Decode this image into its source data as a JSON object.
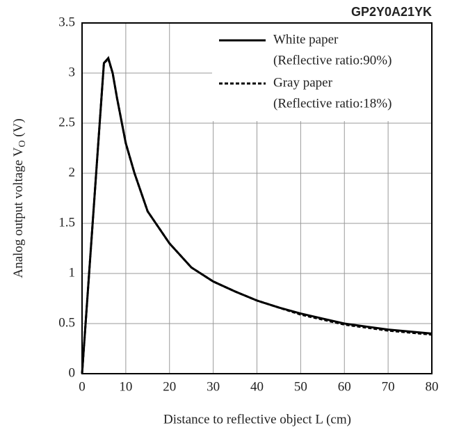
{
  "chart_data": {
    "type": "line",
    "title": "GP2Y0A21YK",
    "xlabel": "Distance to reflective object L (cm)",
    "ylabel": [
      "Analog output voltage V",
      "O",
      " (V)"
    ],
    "x": [
      0,
      5,
      6,
      7,
      8,
      10,
      12,
      15,
      20,
      25,
      30,
      35,
      40,
      45,
      50,
      55,
      60,
      65,
      70,
      75,
      80
    ],
    "series": [
      {
        "name": "White paper",
        "note": "(Reflective ratio:90%)",
        "color": "#000000",
        "dash": false,
        "values": [
          0,
          3.1,
          3.15,
          3.0,
          2.75,
          2.3,
          2.0,
          1.62,
          1.3,
          1.06,
          0.92,
          0.82,
          0.73,
          0.66,
          0.6,
          0.55,
          0.5,
          0.47,
          0.44,
          0.42,
          0.4
        ]
      },
      {
        "name": "Gray paper",
        "note": "(Reflective ratio:18%)",
        "color": "#000000",
        "dash": true,
        "values": [
          0,
          3.1,
          3.14,
          3.0,
          2.75,
          2.3,
          2.0,
          1.62,
          1.3,
          1.06,
          0.92,
          0.82,
          0.73,
          0.66,
          0.59,
          0.54,
          0.49,
          0.46,
          0.43,
          0.41,
          0.39
        ]
      }
    ],
    "xlim": [
      0,
      80
    ],
    "xticks": [
      0,
      10,
      20,
      30,
      40,
      50,
      60,
      70,
      80
    ],
    "ylim": [
      0,
      3.5
    ],
    "yticks": [
      0,
      0.5,
      1,
      1.5,
      2,
      2.5,
      3,
      3.5
    ],
    "grid": true,
    "legend": "upper right"
  }
}
